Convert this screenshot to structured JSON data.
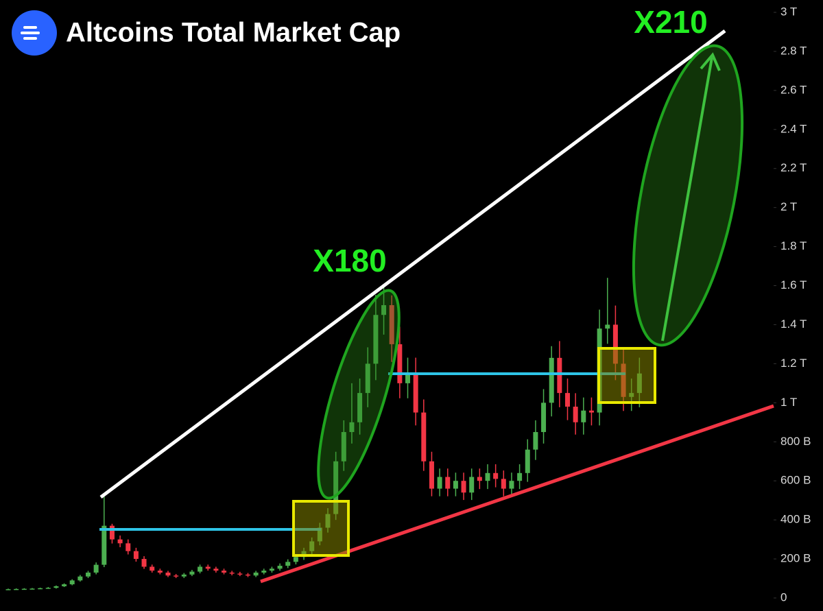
{
  "chart_data": {
    "type": "candlestick",
    "title": "Altcoins Total Market Cap",
    "annotations": [
      "X180",
      "X210"
    ],
    "categories": [
      null,
      null,
      null,
      null,
      null,
      null,
      null,
      null,
      null,
      null,
      null,
      null,
      null,
      null,
      null,
      null,
      null,
      null,
      null,
      null,
      null,
      null,
      null,
      null,
      null,
      null,
      null,
      null,
      null,
      null,
      null,
      null,
      null,
      null,
      null,
      null,
      null,
      null,
      null,
      null,
      null,
      null,
      null,
      null,
      null,
      null,
      null,
      null,
      null,
      null,
      null,
      null,
      null,
      null,
      null,
      null,
      null,
      null,
      null,
      null,
      null,
      null,
      null,
      null,
      null,
      null,
      null,
      null,
      null,
      null,
      null,
      null,
      null,
      null,
      null,
      null,
      null,
      null,
      null,
      null
    ],
    "open": [
      44,
      45,
      46,
      47,
      48,
      50,
      52,
      60,
      70,
      90,
      110,
      130,
      170,
      370,
      300,
      280,
      240,
      200,
      160,
      140,
      130,
      115,
      110,
      120,
      135,
      160,
      150,
      140,
      130,
      125,
      120,
      115,
      130,
      140,
      150,
      165,
      185,
      210,
      240,
      290,
      360,
      430,
      700,
      850,
      900,
      1050,
      1200,
      1450,
      1500,
      1300,
      1100,
      1150,
      950,
      700,
      560,
      620,
      560,
      600,
      540,
      620,
      600,
      640,
      610,
      560,
      600,
      640,
      760,
      850,
      1000,
      1230,
      1050,
      980,
      900,
      960,
      950,
      1380,
      1400,
      1200,
      1030,
      1050
    ],
    "high": [
      48,
      49,
      50,
      51,
      53,
      56,
      64,
      75,
      96,
      118,
      139,
      182,
      520,
      380,
      320,
      300,
      257,
      214,
      171,
      150,
      139,
      123,
      128,
      144,
      171,
      171,
      160,
      150,
      139,
      134,
      128,
      139,
      150,
      160,
      177,
      198,
      225,
      257,
      310,
      385,
      460,
      749,
      910,
      1100,
      1124,
      1284,
      1552,
      1605,
      1550,
      1390,
      1231,
      1231,
      1017,
      749,
      663,
      663,
      642,
      642,
      663,
      663,
      685,
      685,
      653,
      642,
      685,
      813,
      910,
      1070,
      1290,
      1316,
      1124,
      1049,
      1027,
      1027,
      1477,
      1640,
      1498,
      1284,
      1124,
      1231
    ],
    "low": [
      41,
      42,
      43,
      44,
      45,
      47,
      48,
      56,
      65,
      84,
      102,
      121,
      158,
      279,
      260,
      223,
      186,
      149,
      130,
      121,
      107,
      102,
      102,
      112,
      126,
      140,
      130,
      121,
      116,
      112,
      107,
      107,
      121,
      130,
      140,
      153,
      172,
      195,
      223,
      270,
      335,
      400,
      651,
      791,
      837,
      977,
      1116,
      1349,
      1209,
      1023,
      1023,
      884,
      651,
      521,
      521,
      521,
      521,
      502,
      502,
      558,
      558,
      567,
      521,
      521,
      558,
      595,
      707,
      791,
      930,
      977,
      911,
      837,
      837,
      884,
      884,
      1302,
      1116,
      958,
      958,
      977
    ],
    "close": [
      45,
      46,
      47,
      48,
      50,
      52,
      60,
      70,
      90,
      110,
      130,
      170,
      370,
      300,
      280,
      240,
      200,
      160,
      140,
      130,
      115,
      110,
      120,
      135,
      160,
      150,
      140,
      130,
      125,
      120,
      115,
      130,
      140,
      150,
      165,
      185,
      210,
      240,
      290,
      360,
      430,
      700,
      850,
      900,
      1050,
      1200,
      1450,
      1500,
      1300,
      1100,
      1150,
      950,
      700,
      560,
      620,
      560,
      600,
      540,
      620,
      600,
      640,
      610,
      560,
      600,
      640,
      760,
      850,
      1000,
      1230,
      1050,
      980,
      900,
      960,
      950,
      1380,
      1400,
      1200,
      1030,
      1050,
      1150
    ],
    "up_color": "#4caf50",
    "down_color": "#f23645",
    "ylim": [
      0,
      3000
    ],
    "yticks": [
      0,
      {
        "value": 200,
        "label": "200 B"
      },
      {
        "value": 400,
        "label": "400 B"
      },
      {
        "value": 600,
        "label": "600 B"
      },
      {
        "value": 800,
        "label": "800 B"
      },
      {
        "value": 1000,
        "label": "1 T"
      },
      {
        "value": 1200,
        "label": "1.2 T"
      },
      {
        "value": 1400,
        "label": "1.4 T"
      },
      {
        "value": 1600,
        "label": "1.6 T"
      },
      {
        "value": 1800,
        "label": "1.8 T"
      },
      {
        "value": 2000,
        "label": "2 T"
      },
      {
        "value": 2200,
        "label": "2.2 T"
      },
      {
        "value": 2400,
        "label": "2.4 T"
      },
      {
        "value": 2600,
        "label": "2.6 T"
      },
      {
        "value": 2800,
        "label": "2.8 T"
      },
      {
        "value": 3000,
        "label": "3 T"
      }
    ]
  }
}
